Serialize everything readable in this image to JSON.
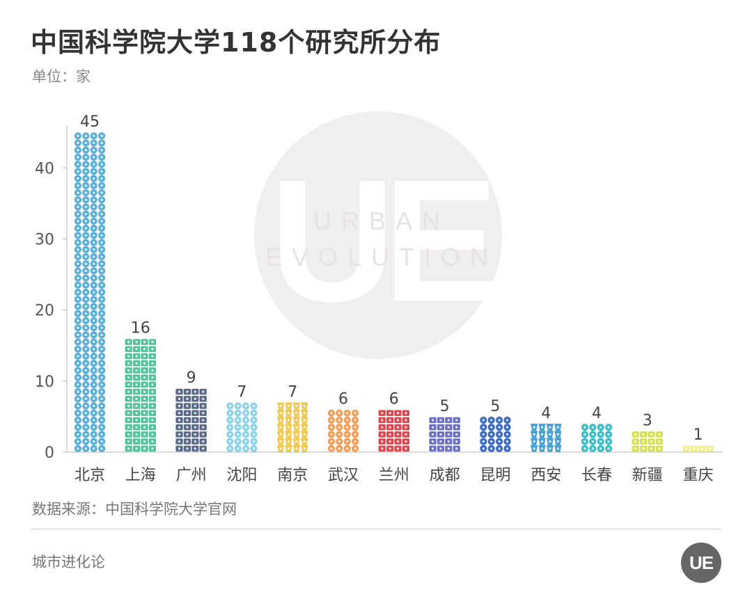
{
  "title": "中国科学院大学118个研究所分布",
  "unit_label": "单位：家",
  "source": "数据来源：中国科学院大学官网",
  "footer": {
    "brand": "城市进化论",
    "logo_text": "UE"
  },
  "watermark": {
    "letters": "UE",
    "line1": "URBAN",
    "line2": "EVOLUTION"
  },
  "chart_data": {
    "type": "bar",
    "style": "pictogram (stacked icons, 4 icons per row, 1 row = 1 unit)",
    "categories": [
      "北京",
      "上海",
      "广州",
      "沈阳",
      "南京",
      "武汉",
      "兰州",
      "成都",
      "昆明",
      "西安",
      "长春",
      "新疆",
      "重庆"
    ],
    "values": [
      45,
      16,
      9,
      7,
      7,
      6,
      6,
      5,
      5,
      4,
      4,
      3,
      1
    ],
    "colors": [
      "#5bafd6",
      "#4fc49a",
      "#5a6a8a",
      "#8fd3ea",
      "#f2c94c",
      "#f0a05a",
      "#d9474f",
      "#6a6ec6",
      "#3d6bbd",
      "#4aa0d0",
      "#3fbdc6",
      "#d7e05a",
      "#f2ef8e"
    ],
    "y_ticks": [
      0,
      10,
      20,
      30,
      40
    ],
    "ylim": [
      0,
      46
    ],
    "show_data_labels": true,
    "grid": false,
    "legend": "none"
  }
}
